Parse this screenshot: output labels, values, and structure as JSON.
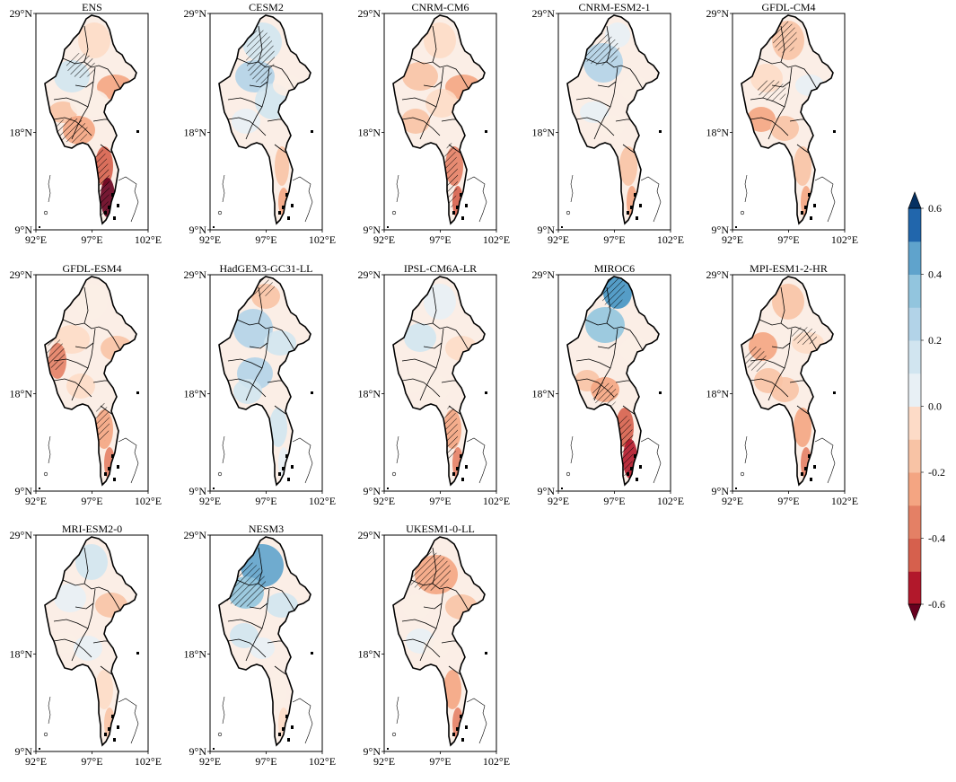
{
  "figure": {
    "panels": [
      {
        "title": "ENS",
        "pattern": "ens"
      },
      {
        "title": "CESM2",
        "pattern": "cesm2"
      },
      {
        "title": "CNRM-CM6",
        "pattern": "cnrmcm6"
      },
      {
        "title": "CNRM-ESM2-1",
        "pattern": "cnrmesm2"
      },
      {
        "title": "GFDL-CM4",
        "pattern": "gfdlcm4"
      },
      {
        "title": "GFDL-ESM4",
        "pattern": "gfdlesm4"
      },
      {
        "title": "HadGEM3-GC31-LL",
        "pattern": "hadgem3"
      },
      {
        "title": "IPSL-CM6A-LR",
        "pattern": "ipsl"
      },
      {
        "title": "MIROC6",
        "pattern": "miroc6"
      },
      {
        "title": "MPI-ESM1-2-HR",
        "pattern": "mpi"
      },
      {
        "title": "MRI-ESM2-0",
        "pattern": "mri"
      },
      {
        "title": "NESM3",
        "pattern": "nesm3"
      },
      {
        "title": "UKESM1-0-LL",
        "pattern": "ukesm"
      }
    ],
    "lat_ticks": [
      "29°N",
      "18°N",
      "9°N"
    ],
    "lon_ticks": [
      "92°E",
      "97°E",
      "102°E"
    ],
    "colorbar": {
      "tick_labels": [
        "0.6",
        "0.4",
        "0.2",
        "0.0",
        "-0.2",
        "-0.4",
        "-0.6"
      ],
      "min": -0.6,
      "max": 0.6,
      "step": 0.1,
      "colors": [
        "#67001f",
        "#b2182b",
        "#d6604d",
        "#e48065",
        "#f4a582",
        "#f8c3a5",
        "#fddbc7",
        "#fbeee6",
        "#e8f0f5",
        "#d1e5f0",
        "#b2d3e8",
        "#92c5de",
        "#5fa3cc",
        "#4393c3",
        "#2166ac",
        "#053061"
      ]
    }
  }
}
